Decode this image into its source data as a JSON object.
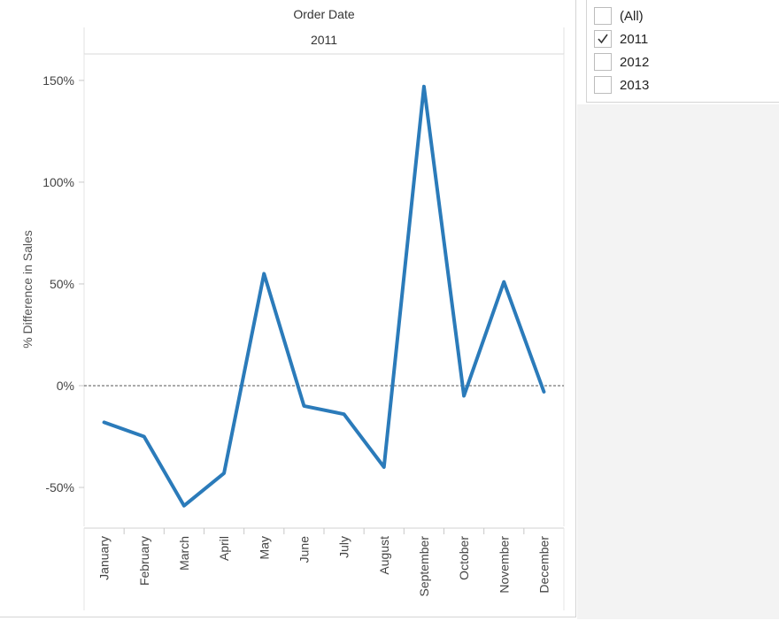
{
  "header": {
    "title": "Order Date",
    "year": "2011"
  },
  "filter": {
    "items": [
      {
        "label": "(All)",
        "checked": false
      },
      {
        "label": "2011",
        "checked": true
      },
      {
        "label": "2012",
        "checked": false
      },
      {
        "label": "2013",
        "checked": false
      }
    ]
  },
  "chart_data": {
    "type": "line",
    "ylabel": "% Difference in Sales",
    "categories": [
      "January",
      "February",
      "March",
      "April",
      "May",
      "June",
      "July",
      "August",
      "September",
      "October",
      "November",
      "December"
    ],
    "series": [
      {
        "values": [
          -18,
          -25,
          -59,
          -43,
          55,
          -10,
          -14,
          -40,
          147,
          -5,
          51,
          -3
        ]
      }
    ],
    "yticks": [
      150,
      100,
      50,
      0,
      -50
    ],
    "ytick_labels": [
      "150%",
      "100%",
      "50%",
      "0%",
      "-50%"
    ],
    "ylim": [
      -70,
      163
    ],
    "line_color": "#2b7bba",
    "zero_line": true
  }
}
